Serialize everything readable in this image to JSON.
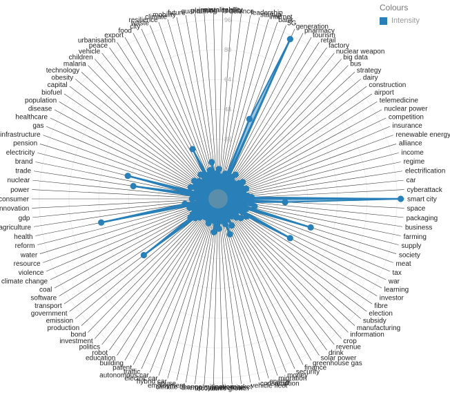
{
  "legend": {
    "title": "Colours",
    "items": [
      {
        "label": "Intensity",
        "color": "#2980b9"
      }
    ]
  },
  "chart_data": {
    "type": "radar",
    "ticks": [
      16,
      32,
      48,
      64,
      80,
      96
    ],
    "rmax": 100,
    "grid": true,
    "legend_position": "top-right",
    "series": [
      {
        "name": "Intensity",
        "color": "#2980b9",
        "points": [
          {
            "label": "smart city",
            "value": 98
          },
          {
            "label": "space",
            "value": 36
          },
          {
            "label": "packaging",
            "value": 18
          },
          {
            "label": "business",
            "value": 14
          },
          {
            "label": "farming",
            "value": 20
          },
          {
            "label": "supply",
            "value": 12
          },
          {
            "label": "society",
            "value": 52
          },
          {
            "label": "meat",
            "value": 16
          },
          {
            "label": "tax",
            "value": 10
          },
          {
            "label": "war",
            "value": 14
          },
          {
            "label": "learning",
            "value": 44
          },
          {
            "label": "investor",
            "value": 18
          },
          {
            "label": "fibre",
            "value": 12
          },
          {
            "label": "election",
            "value": 8
          },
          {
            "label": "subsidy",
            "value": 16
          },
          {
            "label": "manufacturing",
            "value": 10
          },
          {
            "label": "information",
            "value": 14
          },
          {
            "label": "crop",
            "value": 8
          },
          {
            "label": "revenue",
            "value": 12
          },
          {
            "label": "drink",
            "value": 6
          },
          {
            "label": "solar power",
            "value": 10
          },
          {
            "label": "greenhouse gas",
            "value": 8
          },
          {
            "label": "finance",
            "value": 16
          },
          {
            "label": "security",
            "value": 12
          },
          {
            "label": "money",
            "value": 8
          },
          {
            "label": "migration",
            "value": 20
          },
          {
            "label": "energy",
            "value": 14
          },
          {
            "label": "consumption",
            "value": 10
          },
          {
            "label": "vehicle fleet",
            "value": 8
          },
          {
            "label": "market",
            "value": 12
          },
          {
            "label": "exercise",
            "value": 10
          },
          {
            "label": "economic growth",
            "value": 16
          },
          {
            "label": "oil",
            "value": 8
          },
          {
            "label": "unemployment",
            "value": 14
          },
          {
            "label": "climate change mitigation",
            "value": 18
          },
          {
            "label": "employment",
            "value": 12
          },
          {
            "label": "house",
            "value": 10
          },
          {
            "label": "hybrid car",
            "value": 8
          },
          {
            "label": "electric car",
            "value": 12
          },
          {
            "label": "autonomous car",
            "value": 14
          },
          {
            "label": "traffic",
            "value": 10
          },
          {
            "label": "patent",
            "value": 12
          },
          {
            "label": "building",
            "value": 8
          },
          {
            "label": "education",
            "value": 10
          },
          {
            "label": "robot",
            "value": 12
          },
          {
            "label": "politics",
            "value": 8
          },
          {
            "label": "investment",
            "value": 10
          },
          {
            "label": "bond",
            "value": 14
          },
          {
            "label": "production",
            "value": 12
          },
          {
            "label": "emission",
            "value": 16
          },
          {
            "label": "government",
            "value": 50
          },
          {
            "label": "transport",
            "value": 18
          },
          {
            "label": "software",
            "value": 16
          },
          {
            "label": "coal",
            "value": 10
          },
          {
            "label": "climate change",
            "value": 12
          },
          {
            "label": "violence",
            "value": 14
          },
          {
            "label": "resource",
            "value": 10
          },
          {
            "label": "water",
            "value": 16
          },
          {
            "label": "reform",
            "value": 12
          },
          {
            "label": "health",
            "value": 64
          },
          {
            "label": "agriculture",
            "value": 18
          },
          {
            "label": "gdp",
            "value": 10
          },
          {
            "label": "innovation",
            "value": 8
          },
          {
            "label": "consumer",
            "value": 14
          },
          {
            "label": "power",
            "value": 12
          },
          {
            "label": "nuclear",
            "value": 10
          },
          {
            "label": "trade",
            "value": 46
          },
          {
            "label": "brand",
            "value": 16
          },
          {
            "label": "electricity",
            "value": 50
          },
          {
            "label": "pension",
            "value": 12
          },
          {
            "label": "infrastructure",
            "value": 10
          },
          {
            "label": "gas",
            "value": 16
          },
          {
            "label": "healthcare",
            "value": 8
          },
          {
            "label": "disease",
            "value": 14
          },
          {
            "label": "population",
            "value": 12
          },
          {
            "label": "biofuel",
            "value": 10
          },
          {
            "label": "capital",
            "value": 16
          },
          {
            "label": "obesity",
            "value": 12
          },
          {
            "label": "technology",
            "value": 14
          },
          {
            "label": "malaria",
            "value": 8
          },
          {
            "label": "children",
            "value": 12
          },
          {
            "label": "vehicle",
            "value": 10
          },
          {
            "label": "peace",
            "value": 16
          },
          {
            "label": "urbanisation",
            "value": 12
          },
          {
            "label": "export",
            "value": 14
          },
          {
            "label": "food",
            "value": 30
          },
          {
            "label": "city",
            "value": 14
          },
          {
            "label": "waste",
            "value": 12
          },
          {
            "label": "resilience",
            "value": 10
          },
          {
            "label": "climate",
            "value": 16
          },
          {
            "label": "mobility",
            "value": 12
          },
          {
            "label": "future",
            "value": 20
          },
          {
            "label": "quantum",
            "value": 12
          },
          {
            "label": "planning",
            "value": 10
          },
          {
            "label": "inequality",
            "value": 14
          },
          {
            "label": "sustainability",
            "value": 16
          },
          {
            "label": "conflict",
            "value": 10
          },
          {
            "label": "defence",
            "value": 12
          },
          {
            "label": "leadership",
            "value": 8
          },
          {
            "label": "startup",
            "value": 10
          },
          {
            "label": "internet",
            "value": 14
          },
          {
            "label": "bank",
            "value": 12
          },
          {
            "label": "5G",
            "value": 46
          },
          {
            "label": "generation",
            "value": 94
          },
          {
            "label": "pharmacy",
            "value": 12
          },
          {
            "label": "tourism",
            "value": 10
          },
          {
            "label": "retail",
            "value": 14
          },
          {
            "label": "factory",
            "value": 16
          },
          {
            "label": "nuclear weapon",
            "value": 12
          },
          {
            "label": "big data",
            "value": 10
          },
          {
            "label": "bus",
            "value": 8
          },
          {
            "label": "strategy",
            "value": 12
          },
          {
            "label": "dairy",
            "value": 10
          },
          {
            "label": "construction",
            "value": 14
          },
          {
            "label": "airport",
            "value": 16
          },
          {
            "label": "telemedicine",
            "value": 12
          },
          {
            "label": "nuclear power",
            "value": 10
          },
          {
            "label": "competition",
            "value": 14
          },
          {
            "label": "insurance",
            "value": 12
          },
          {
            "label": "renewable energy",
            "value": 16
          },
          {
            "label": "alliance",
            "value": 10
          },
          {
            "label": "income",
            "value": 12
          },
          {
            "label": "regime",
            "value": 14
          },
          {
            "label": "electrification",
            "value": 10
          },
          {
            "label": "car",
            "value": 16
          },
          {
            "label": "cyberattack",
            "value": 18
          }
        ]
      }
    ]
  }
}
